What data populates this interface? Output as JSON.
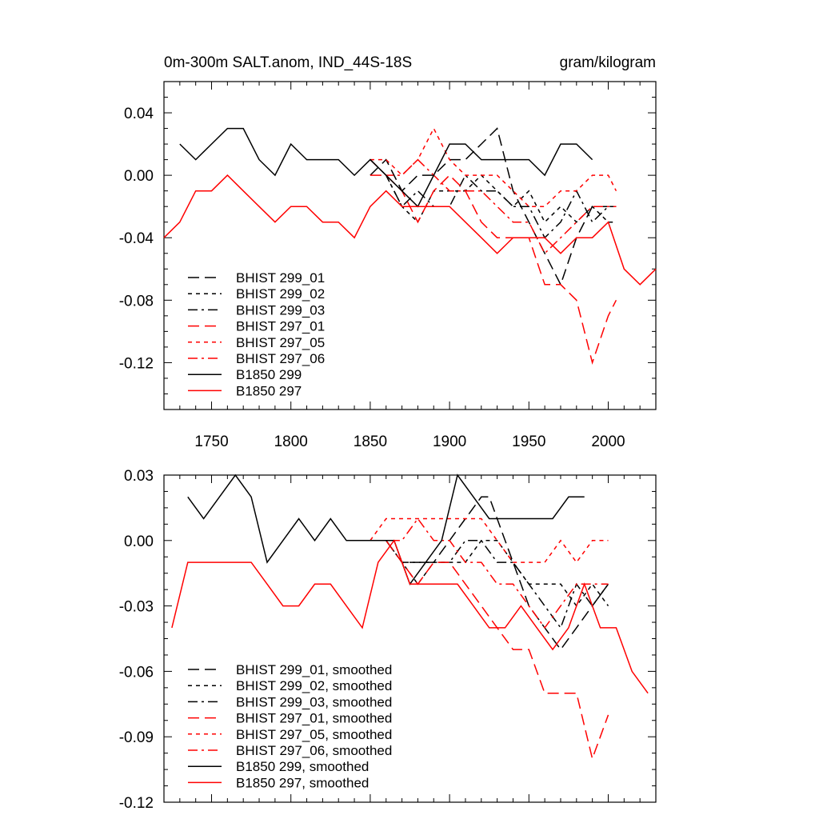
{
  "chart_data": [
    {
      "type": "line",
      "title": "0m-300m SALT.anom, IND_44S-18S",
      "units": "gram/kilogram",
      "xlabel": "",
      "ylabel": "",
      "xlim": [
        1720,
        2030
      ],
      "ylim": [
        -0.15,
        0.06
      ],
      "x_ticks": [
        1750,
        1800,
        1850,
        1900,
        1950,
        2000
      ],
      "x_tick_labels": [
        "1750",
        "1800",
        "1850",
        "1900",
        "1950",
        "2000"
      ],
      "y_ticks": [
        0.04,
        0.0,
        -0.04,
        -0.08,
        -0.12
      ],
      "y_tick_labels": [
        "0.04",
        "0.00",
        "-0.04",
        "-0.08",
        "-0.12"
      ],
      "grid": false,
      "legend_position": "bottom-left",
      "series": [
        {
          "name": "BHIST 299_01",
          "color": "#000000",
          "dash": "long-dash",
          "x": [
            1850,
            1860,
            1870,
            1880,
            1890,
            1900,
            1910,
            1920,
            1930,
            1940,
            1950,
            1960,
            1970,
            1980,
            1990,
            2000,
            2005
          ],
          "y": [
            0.0,
            0.01,
            -0.01,
            0.0,
            0.0,
            0.01,
            0.01,
            0.02,
            0.03,
            -0.01,
            -0.03,
            -0.05,
            -0.07,
            -0.04,
            -0.02,
            -0.02,
            -0.02
          ]
        },
        {
          "name": "BHIST 299_02",
          "color": "#000000",
          "dash": "short-dash",
          "x": [
            1850,
            1860,
            1870,
            1880,
            1890,
            1900,
            1910,
            1920,
            1930,
            1940,
            1950,
            1960,
            1970,
            1980,
            1990,
            2000,
            2005
          ],
          "y": [
            0.01,
            0.0,
            -0.02,
            -0.03,
            -0.01,
            -0.01,
            -0.01,
            0.0,
            -0.01,
            -0.02,
            -0.01,
            -0.03,
            -0.02,
            -0.03,
            -0.02,
            -0.03,
            -0.03
          ]
        },
        {
          "name": "BHIST 299_03",
          "color": "#000000",
          "dash": "dash-dot",
          "x": [
            1850,
            1860,
            1870,
            1880,
            1890,
            1900,
            1910,
            1920,
            1930,
            1940,
            1950,
            1960,
            1970,
            1980,
            1990,
            2000,
            2005
          ],
          "y": [
            0.01,
            0.0,
            -0.02,
            -0.01,
            -0.02,
            -0.02,
            0.0,
            -0.01,
            -0.01,
            -0.02,
            -0.02,
            -0.04,
            -0.03,
            -0.01,
            -0.03,
            -0.02,
            -0.02
          ]
        },
        {
          "name": "BHIST 297_01",
          "color": "#ff0000",
          "dash": "long-dash",
          "x": [
            1850,
            1860,
            1870,
            1880,
            1890,
            1900,
            1910,
            1920,
            1930,
            1940,
            1950,
            1960,
            1970,
            1980,
            1990,
            2000,
            2005
          ],
          "y": [
            0.0,
            0.0,
            -0.01,
            -0.03,
            -0.01,
            0.0,
            -0.01,
            -0.03,
            -0.04,
            -0.04,
            -0.04,
            -0.07,
            -0.07,
            -0.08,
            -0.12,
            -0.09,
            -0.08
          ]
        },
        {
          "name": "BHIST 297_05",
          "color": "#ff0000",
          "dash": "short-dash",
          "x": [
            1850,
            1860,
            1870,
            1880,
            1890,
            1900,
            1910,
            1920,
            1930,
            1940,
            1950,
            1960,
            1970,
            1980,
            1990,
            2000,
            2005
          ],
          "y": [
            0.01,
            0.01,
            0.0,
            0.01,
            0.03,
            0.01,
            0.0,
            0.0,
            0.0,
            -0.01,
            -0.02,
            -0.02,
            -0.01,
            -0.01,
            0.0,
            0.0,
            -0.01
          ]
        },
        {
          "name": "BHIST 297_06",
          "color": "#ff0000",
          "dash": "dash-dot",
          "x": [
            1850,
            1860,
            1870,
            1880,
            1890,
            1900,
            1910,
            1920,
            1930,
            1940,
            1950,
            1960,
            1970,
            1980,
            1990,
            2000,
            2005
          ],
          "y": [
            0.01,
            0.0,
            0.0,
            0.01,
            0.0,
            -0.01,
            -0.01,
            -0.01,
            -0.02,
            -0.03,
            -0.03,
            -0.05,
            -0.04,
            -0.03,
            -0.02,
            -0.02,
            -0.02
          ]
        },
        {
          "name": "B1850 299",
          "color": "#000000",
          "dash": "solid",
          "x": [
            1730,
            1740,
            1750,
            1760,
            1770,
            1780,
            1790,
            1800,
            1810,
            1820,
            1830,
            1840,
            1850,
            1860,
            1870,
            1880,
            1890,
            1900,
            1910,
            1920,
            1930,
            1940,
            1950,
            1960,
            1970,
            1980,
            1990
          ],
          "y": [
            0.02,
            0.01,
            0.02,
            0.03,
            0.03,
            0.01,
            0.0,
            0.02,
            0.01,
            0.01,
            0.01,
            0.0,
            0.01,
            0.0,
            -0.01,
            -0.02,
            0.0,
            0.02,
            0.02,
            0.01,
            0.01,
            0.01,
            0.01,
            0.0,
            0.02,
            0.02,
            0.01
          ]
        },
        {
          "name": "B1850 297",
          "color": "#ff0000",
          "dash": "solid",
          "x": [
            1720,
            1730,
            1740,
            1750,
            1760,
            1770,
            1780,
            1790,
            1800,
            1810,
            1820,
            1830,
            1840,
            1850,
            1860,
            1870,
            1880,
            1890,
            1900,
            1910,
            1920,
            1930,
            1940,
            1950,
            1960,
            1970,
            1980,
            1990,
            2000,
            2010,
            2020,
            2030
          ],
          "y": [
            -0.04,
            -0.03,
            -0.01,
            -0.01,
            0.0,
            -0.01,
            -0.02,
            -0.03,
            -0.02,
            -0.02,
            -0.03,
            -0.03,
            -0.04,
            -0.02,
            -0.01,
            -0.02,
            -0.02,
            -0.02,
            -0.02,
            -0.03,
            -0.04,
            -0.05,
            -0.04,
            -0.04,
            -0.04,
            -0.05,
            -0.04,
            -0.04,
            -0.03,
            -0.06,
            -0.07,
            -0.06
          ]
        }
      ]
    },
    {
      "type": "line",
      "title": "",
      "xlabel": "",
      "ylabel": "",
      "xlim": [
        1720,
        2030
      ],
      "ylim": [
        -0.12,
        0.03
      ],
      "y_ticks": [
        0.03,
        0.0,
        -0.03,
        -0.06,
        -0.09,
        -0.12
      ],
      "y_tick_labels": [
        "0.03",
        "0.00",
        "-0.03",
        "-0.06",
        "-0.09",
        "-0.12"
      ],
      "x_ticks": [
        1750,
        1800,
        1850,
        1900,
        1950,
        2000
      ],
      "grid": false,
      "legend_position": "bottom-left",
      "series": [
        {
          "name": "BHIST 299_01, smoothed",
          "color": "#000000",
          "dash": "long-dash",
          "x": [
            1850,
            1860,
            1870,
            1880,
            1890,
            1900,
            1910,
            1920,
            1925,
            1930,
            1940,
            1950,
            1960,
            1970,
            1980,
            1990,
            2000
          ],
          "y": [
            0.0,
            0.0,
            -0.01,
            -0.01,
            -0.01,
            0.0,
            0.01,
            0.02,
            0.02,
            0.01,
            -0.01,
            -0.03,
            -0.04,
            -0.05,
            -0.04,
            -0.03,
            -0.02
          ]
        },
        {
          "name": "BHIST 299_02, smoothed",
          "color": "#000000",
          "dash": "short-dash",
          "x": [
            1850,
            1860,
            1870,
            1880,
            1890,
            1900,
            1910,
            1920,
            1930,
            1940,
            1950,
            1960,
            1970,
            1980,
            1990,
            2000
          ],
          "y": [
            0.0,
            0.0,
            -0.01,
            -0.02,
            -0.01,
            -0.01,
            -0.01,
            0.0,
            0.0,
            -0.01,
            -0.02,
            -0.02,
            -0.02,
            -0.03,
            -0.02,
            -0.03
          ]
        },
        {
          "name": "BHIST 299_03, smoothed",
          "color": "#000000",
          "dash": "dash-dot",
          "x": [
            1850,
            1860,
            1870,
            1880,
            1890,
            1900,
            1910,
            1920,
            1930,
            1940,
            1950,
            1960,
            1970,
            1980,
            1990,
            2000
          ],
          "y": [
            0.0,
            0.0,
            -0.01,
            -0.01,
            -0.01,
            -0.01,
            0.0,
            0.0,
            -0.01,
            -0.01,
            -0.02,
            -0.03,
            -0.04,
            -0.02,
            -0.03,
            -0.02
          ]
        },
        {
          "name": "BHIST 297_01, smoothed",
          "color": "#ff0000",
          "dash": "long-dash",
          "x": [
            1850,
            1860,
            1870,
            1880,
            1890,
            1900,
            1910,
            1920,
            1930,
            1940,
            1950,
            1960,
            1970,
            1980,
            1990,
            2000
          ],
          "y": [
            0.0,
            0.0,
            -0.01,
            -0.02,
            -0.01,
            -0.01,
            -0.02,
            -0.03,
            -0.04,
            -0.05,
            -0.05,
            -0.07,
            -0.07,
            -0.07,
            -0.1,
            -0.08
          ]
        },
        {
          "name": "BHIST 297_05, smoothed",
          "color": "#ff0000",
          "dash": "short-dash",
          "x": [
            1850,
            1860,
            1870,
            1880,
            1890,
            1900,
            1910,
            1920,
            1930,
            1940,
            1950,
            1960,
            1970,
            1980,
            1990,
            2000
          ],
          "y": [
            0.0,
            0.01,
            0.01,
            0.01,
            0.01,
            0.01,
            0.01,
            0.01,
            0.0,
            -0.01,
            -0.01,
            -0.01,
            0.0,
            -0.01,
            0.0,
            0.0
          ]
        },
        {
          "name": "BHIST 297_06, smoothed",
          "color": "#ff0000",
          "dash": "dash-dot",
          "x": [
            1850,
            1860,
            1870,
            1880,
            1890,
            1900,
            1910,
            1920,
            1930,
            1940,
            1950,
            1960,
            1970,
            1980,
            1990,
            2000
          ],
          "y": [
            0.0,
            0.0,
            0.0,
            0.01,
            0.0,
            0.0,
            -0.01,
            -0.01,
            -0.02,
            -0.02,
            -0.03,
            -0.04,
            -0.03,
            -0.02,
            -0.02,
            -0.02
          ]
        },
        {
          "name": "B1850 299, smoothed",
          "color": "#000000",
          "dash": "solid",
          "x": [
            1735,
            1745,
            1755,
            1765,
            1775,
            1785,
            1795,
            1805,
            1815,
            1825,
            1835,
            1845,
            1855,
            1865,
            1875,
            1885,
            1895,
            1905,
            1915,
            1925,
            1935,
            1945,
            1955,
            1965,
            1975,
            1985
          ],
          "y": [
            0.02,
            0.01,
            0.02,
            0.03,
            0.02,
            -0.01,
            0.0,
            0.01,
            0.0,
            0.01,
            0.0,
            0.0,
            0.0,
            0.0,
            -0.02,
            -0.01,
            0.0,
            0.03,
            0.02,
            0.01,
            0.01,
            0.01,
            0.01,
            0.01,
            0.02,
            0.02
          ]
        },
        {
          "name": "B1850 297, smoothed",
          "color": "#ff0000",
          "dash": "solid",
          "x": [
            1725,
            1735,
            1745,
            1755,
            1765,
            1775,
            1785,
            1795,
            1805,
            1815,
            1825,
            1835,
            1845,
            1855,
            1865,
            1875,
            1885,
            1895,
            1905,
            1915,
            1925,
            1935,
            1945,
            1955,
            1965,
            1975,
            1985,
            1995,
            2005,
            2015,
            2025
          ],
          "y": [
            -0.04,
            -0.01,
            -0.01,
            -0.01,
            -0.01,
            -0.01,
            -0.02,
            -0.03,
            -0.03,
            -0.02,
            -0.02,
            -0.03,
            -0.04,
            -0.01,
            0.0,
            -0.02,
            -0.02,
            -0.02,
            -0.02,
            -0.03,
            -0.04,
            -0.04,
            -0.03,
            -0.04,
            -0.05,
            -0.04,
            -0.02,
            -0.04,
            -0.04,
            -0.06,
            -0.07
          ]
        }
      ]
    }
  ]
}
